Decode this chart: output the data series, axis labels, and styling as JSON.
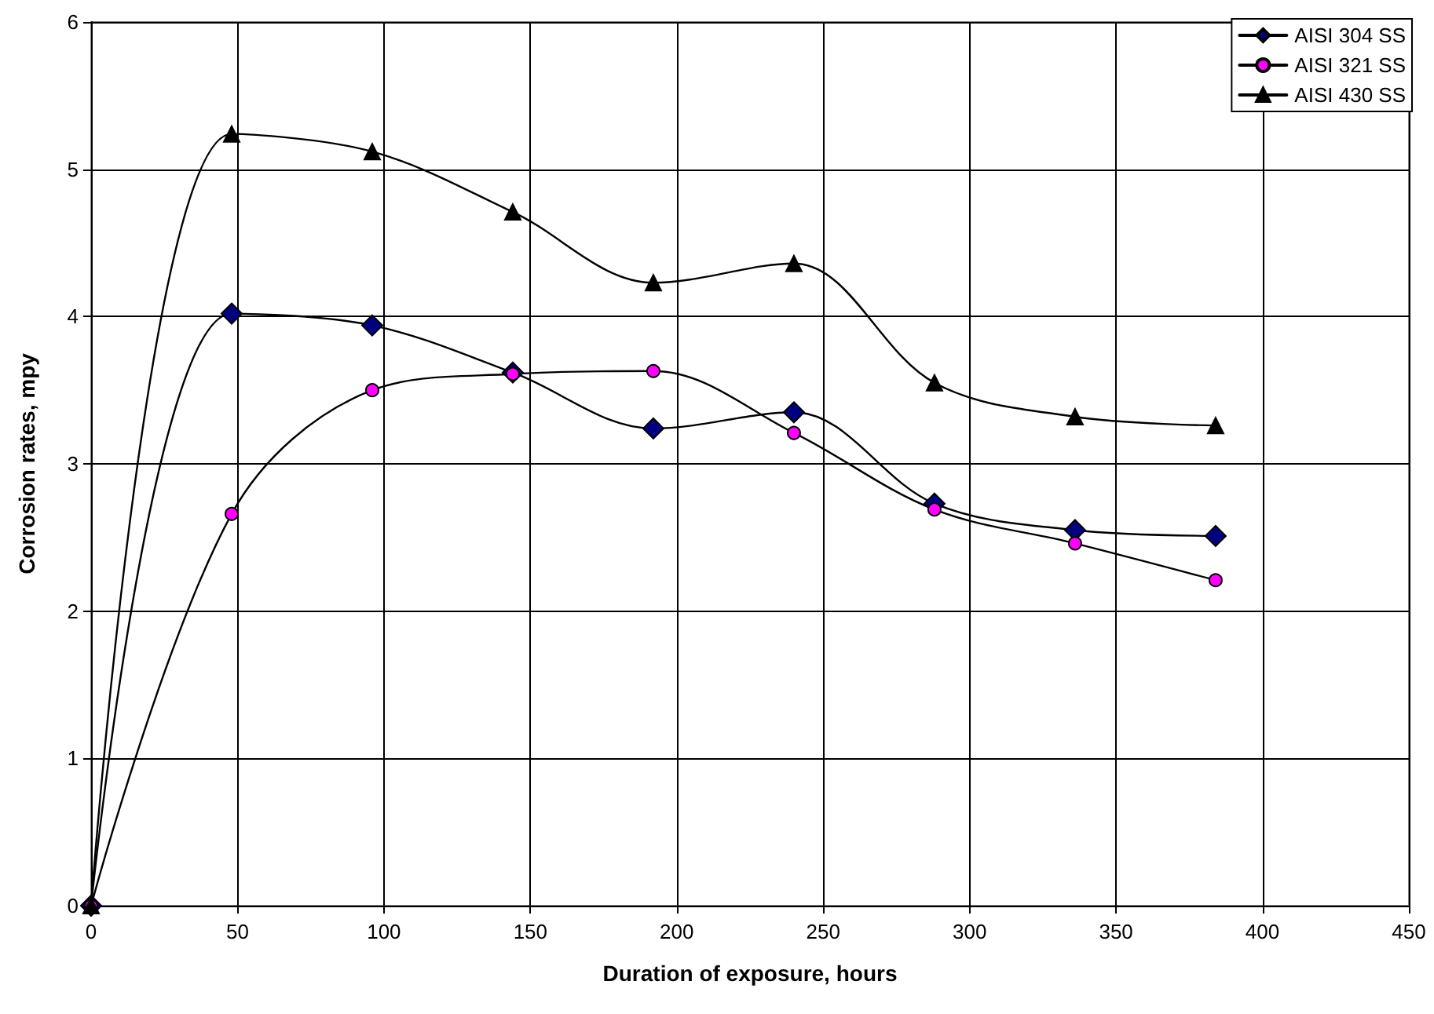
{
  "chart_data": {
    "type": "line",
    "xlabel": "Duration of exposure, hours",
    "ylabel": "Corrosion rates, mpy",
    "x": [
      0,
      48,
      96,
      144,
      192,
      240,
      288,
      336,
      384
    ],
    "series": [
      {
        "name": "AISI 304 SS",
        "color": "#000080",
        "marker": "diamond",
        "values": [
          0,
          4.02,
          3.94,
          3.62,
          3.24,
          3.35,
          2.73,
          2.55,
          2.51
        ]
      },
      {
        "name": "AISI 321 SS",
        "color": "#ff00ff",
        "marker": "circle",
        "values": [
          0,
          2.66,
          3.5,
          3.61,
          3.63,
          3.21,
          2.69,
          2.46,
          2.21
        ]
      },
      {
        "name": "AISI 430 SS",
        "color": "#000000",
        "marker": "triangle",
        "values": [
          0,
          5.24,
          5.12,
          4.71,
          4.23,
          4.36,
          3.55,
          3.32,
          3.26
        ]
      }
    ],
    "xlim": [
      0,
      450
    ],
    "xticks": [
      0,
      50,
      100,
      150,
      200,
      250,
      300,
      350,
      400,
      450
    ],
    "ylim": [
      0,
      6
    ],
    "yticks": [
      0,
      1,
      2,
      3,
      4,
      5,
      6
    ],
    "grid": true,
    "legend": "top right",
    "line_style": "solid"
  }
}
